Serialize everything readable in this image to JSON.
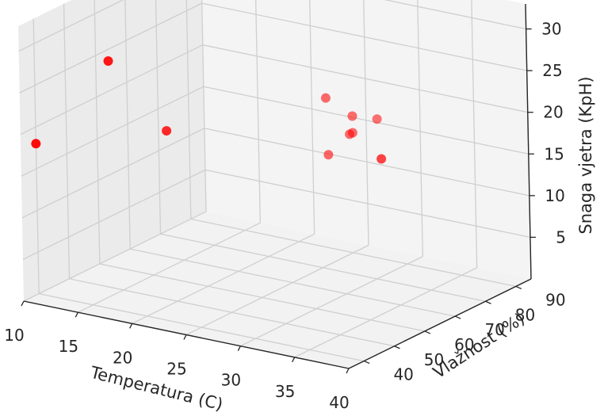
{
  "chart_data": {
    "type": "scatter3d",
    "title": "",
    "xlabel": "Temperatura (C)",
    "ylabel": "Vlažnost (%)",
    "zlabel": "Snaga vjetra (KpH)",
    "xlim": [
      10,
      40
    ],
    "ylim": [
      35,
      95
    ],
    "zlim": [
      0,
      33
    ],
    "xticks": [
      "10",
      "15",
      "20",
      "25",
      "30",
      "35",
      "40"
    ],
    "yticks": [
      "40",
      "50",
      "60",
      "70",
      "80",
      "90"
    ],
    "zticks": [
      "5",
      "10",
      "15",
      "20",
      "25",
      "30"
    ],
    "grid": true,
    "marker_color": "#ff0000",
    "points": [
      {
        "x": 16,
        "y": 43,
        "z": 29
      },
      {
        "x": 10,
        "y": 40,
        "z": 18
      },
      {
        "x": 19,
        "y": 51,
        "z": 20
      },
      {
        "x": 25,
        "y": 82,
        "z": 20
      },
      {
        "x": 26,
        "y": 79,
        "z": 14
      },
      {
        "x": 28,
        "y": 80,
        "z": 19
      },
      {
        "x": 28,
        "y": 79,
        "z": 17
      },
      {
        "x": 28,
        "y": 80,
        "z": 17
      },
      {
        "x": 30,
        "y": 81,
        "z": 19
      },
      {
        "x": 40,
        "y": 47,
        "z": 23
      }
    ]
  }
}
